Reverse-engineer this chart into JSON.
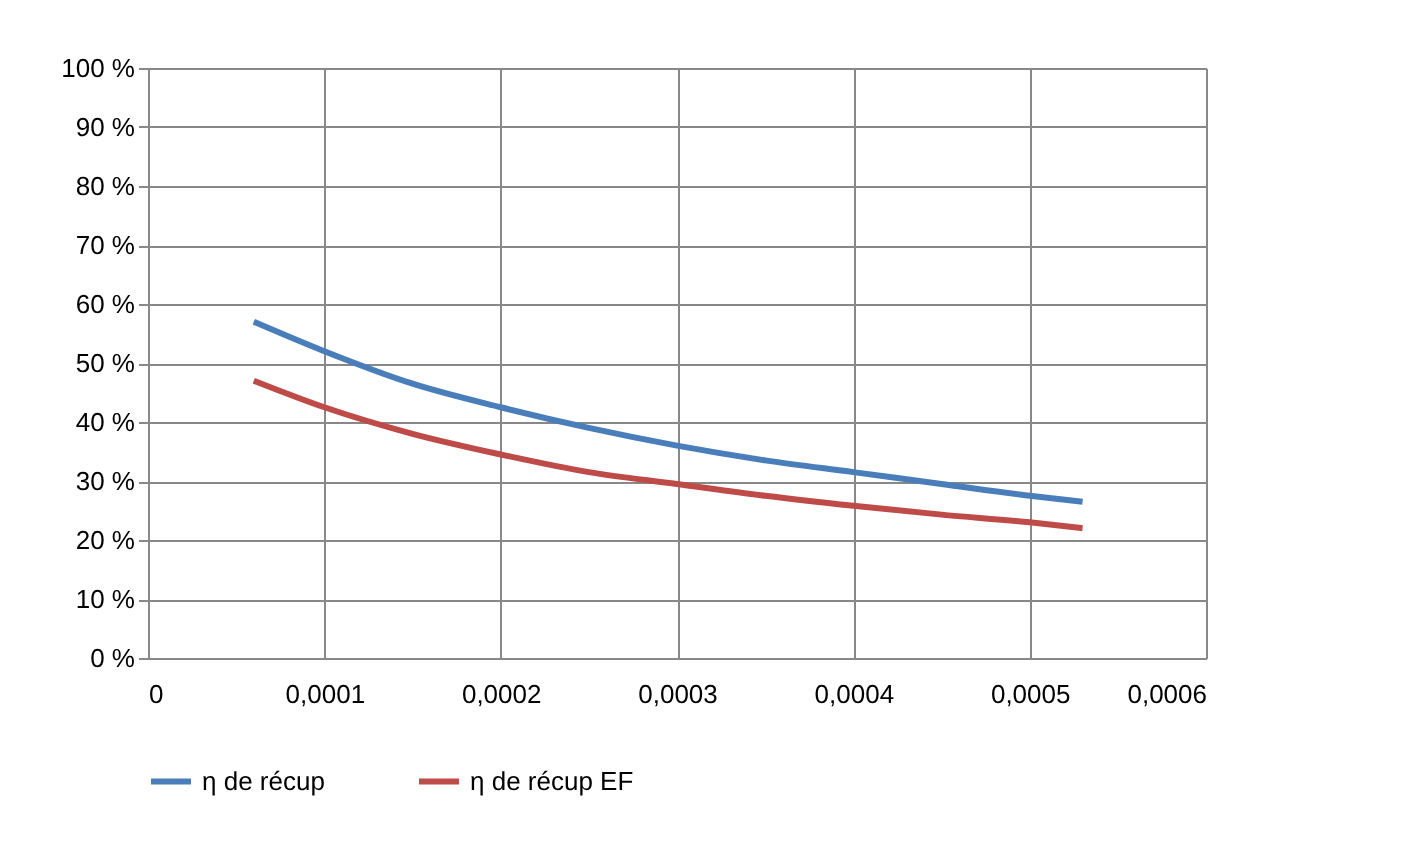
{
  "chart_data": {
    "type": "line",
    "x": [
      6e-05,
      0.0001,
      0.00015,
      0.0002,
      0.00025,
      0.0003,
      0.00035,
      0.0004,
      0.00045,
      0.0005,
      0.00053
    ],
    "series": [
      {
        "name": "η de récup",
        "color": "#4a7ebb",
        "values": [
          57,
          52,
          46.5,
          42.5,
          39,
          36,
          33.5,
          31.5,
          29.5,
          27.5,
          26.5
        ]
      },
      {
        "name": "η de récup EF",
        "color": "#be4b48",
        "values": [
          47,
          42.5,
          38,
          34.5,
          31.5,
          29.5,
          27.5,
          25.8,
          24.3,
          23,
          22
        ]
      }
    ],
    "xlim": [
      0,
      0.0006
    ],
    "xticks": [
      {
        "value": 0,
        "label": "0"
      },
      {
        "value": 0.0001,
        "label": "0,0001"
      },
      {
        "value": 0.0002,
        "label": "0,0002"
      },
      {
        "value": 0.0003,
        "label": "0,0003"
      },
      {
        "value": 0.0004,
        "label": "0,0004"
      },
      {
        "value": 0.0005,
        "label": "0,0005"
      },
      {
        "value": 0.0006,
        "label": "0,0006"
      }
    ],
    "ylim": [
      0,
      100
    ],
    "yticks": [
      {
        "value": 0,
        "label": "0 %"
      },
      {
        "value": 10,
        "label": "10 %"
      },
      {
        "value": 20,
        "label": "20 %"
      },
      {
        "value": 30,
        "label": "30 %"
      },
      {
        "value": 40,
        "label": "40 %"
      },
      {
        "value": 50,
        "label": "50 %"
      },
      {
        "value": 60,
        "label": "60 %"
      },
      {
        "value": 70,
        "label": "70 %"
      },
      {
        "value": 80,
        "label": "80 %"
      },
      {
        "value": 90,
        "label": "90 %"
      },
      {
        "value": 100,
        "label": "100 %"
      }
    ],
    "grid": true,
    "legend": "bottom",
    "marker": "none",
    "line_style": "solid"
  }
}
